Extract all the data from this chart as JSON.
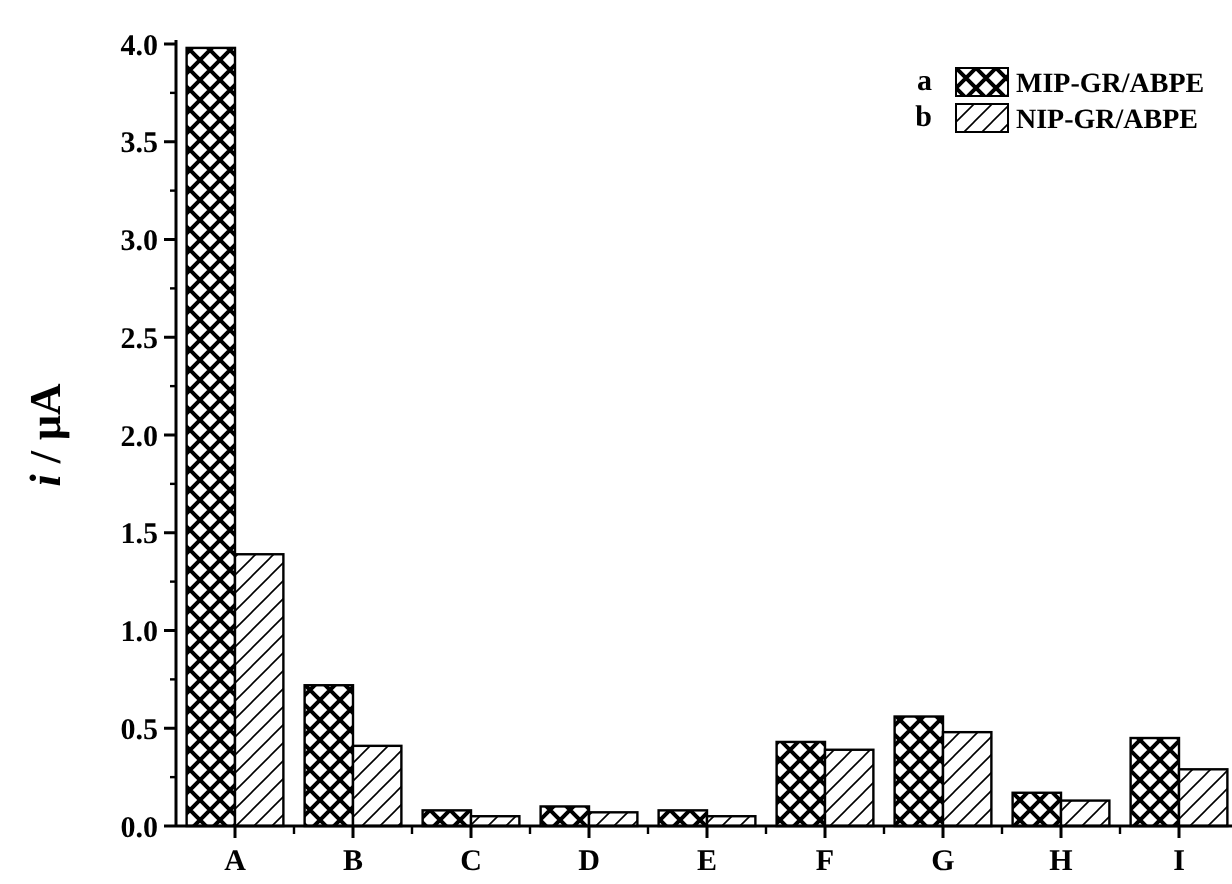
{
  "chart_data": {
    "type": "bar",
    "ylabel": "i / μA",
    "categories": [
      "A",
      "B",
      "C",
      "D",
      "E",
      "F",
      "G",
      "H",
      "I"
    ],
    "series": [
      {
        "name": "MIP-GR/ABPE",
        "color": "#000000",
        "values": [
          3.98,
          0.72,
          0.08,
          0.1,
          0.08,
          0.43,
          0.56,
          0.17,
          0.45
        ]
      },
      {
        "name": "NIP-GR/ABPE",
        "color": "#000000",
        "values": [
          1.39,
          0.41,
          0.05,
          0.07,
          0.05,
          0.39,
          0.48,
          0.13,
          0.29
        ]
      }
    ],
    "annotations": [
      "a",
      "b"
    ],
    "ylim": [
      0,
      4
    ],
    "yticks": [
      {
        "value": 0,
        "label": "0.0"
      },
      {
        "value": 0.5,
        "label": "0.5"
      },
      {
        "value": 1,
        "label": "1.0"
      },
      {
        "value": 1.5,
        "label": "1.5"
      },
      {
        "value": 2,
        "label": "2.0"
      },
      {
        "value": 2.5,
        "label": "2.5"
      },
      {
        "value": 3,
        "label": "3.0"
      },
      {
        "value": 3.5,
        "label": "3.5"
      },
      {
        "value": 4,
        "label": "4.0"
      }
    ],
    "legend": "top right",
    "grid": false
  }
}
